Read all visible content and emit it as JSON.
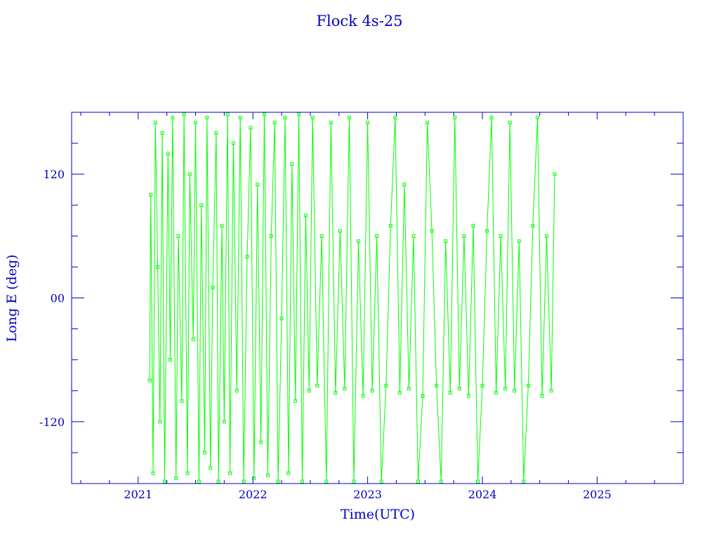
{
  "chart_data": {
    "type": "line",
    "title": "Flock 4s-25",
    "xlabel": "Time(UTC)",
    "ylabel": "Long E (deg)",
    "xlim": [
      2020.42,
      2025.75
    ],
    "ylim": [
      -180,
      180
    ],
    "xticks": [
      2021,
      2022,
      2023,
      2024,
      2025
    ],
    "xtick_labels": [
      "2021",
      "2022",
      "2023",
      "2024",
      "2025"
    ],
    "yticks": [
      120,
      0,
      -120
    ],
    "ytick_labels": [
      "120",
      "00",
      "-120"
    ],
    "grid": false,
    "colors": {
      "series": "#00ff00",
      "axes": "#0000c0",
      "text": "#0000c0"
    },
    "series": [
      {
        "x": [
          2021.1,
          2021.11,
          2021.13,
          2021.15,
          2021.17,
          2021.19,
          2021.21,
          2021.23,
          2021.26,
          2021.28,
          2021.3,
          2021.33,
          2021.35,
          2021.38,
          2021.4,
          2021.43,
          2021.45,
          2021.48,
          2021.5,
          2021.53,
          2021.55,
          2021.58,
          2021.6,
          2021.63,
          2021.65,
          2021.68,
          2021.7,
          2021.73,
          2021.75,
          2021.78,
          2021.8,
          2021.83,
          2021.86,
          2021.89,
          2021.92,
          2021.95,
          2021.98,
          2022.01,
          2022.04,
          2022.07,
          2022.1,
          2022.13,
          2022.16,
          2022.19,
          2022.22,
          2022.25,
          2022.28,
          2022.31,
          2022.34,
          2022.37,
          2022.4,
          2022.43,
          2022.46,
          2022.49,
          2022.52,
          2022.56,
          2022.6,
          2022.64,
          2022.68,
          2022.72,
          2022.76,
          2022.8,
          2022.84,
          2022.88,
          2022.92,
          2022.96,
          2023.0,
          2023.04,
          2023.08,
          2023.12,
          2023.16,
          2023.2,
          2023.24,
          2023.28,
          2023.32,
          2023.36,
          2023.4,
          2023.44,
          2023.48,
          2023.52,
          2023.56,
          2023.6,
          2023.64,
          2023.68,
          2023.72,
          2023.76,
          2023.8,
          2023.84,
          2023.88,
          2023.92,
          2023.96,
          2024.0,
          2024.04,
          2024.08,
          2024.12,
          2024.16,
          2024.2,
          2024.24,
          2024.28,
          2024.32,
          2024.36,
          2024.4,
          2024.44,
          2024.48,
          2024.52,
          2024.56,
          2024.6,
          2024.63
        ],
        "y": [
          -80,
          100,
          -170,
          170,
          30,
          -120,
          160,
          -178,
          140,
          -60,
          175,
          -175,
          60,
          -100,
          178,
          -170,
          120,
          -40,
          170,
          -178,
          90,
          -150,
          175,
          -165,
          10,
          160,
          -178,
          70,
          -120,
          178,
          -170,
          150,
          -90,
          175,
          -178,
          40,
          165,
          -175,
          110,
          -140,
          178,
          -172,
          60,
          170,
          -178,
          -20,
          175,
          -170,
          130,
          -100,
          178,
          -178,
          80,
          -90,
          175,
          -85,
          60,
          -178,
          170,
          -92,
          65,
          -88,
          175,
          -178,
          55,
          -95,
          170,
          -90,
          60,
          -178,
          -85,
          70,
          175,
          -92,
          110,
          -88,
          60,
          -178,
          -95,
          170,
          65,
          -85,
          -178,
          55,
          -92,
          175,
          -88,
          60,
          -95,
          70,
          -178,
          -85,
          65,
          175,
          -92,
          60,
          -88,
          170,
          -90,
          55,
          -178,
          -85,
          70,
          175,
          -95,
          60,
          -90,
          120
        ]
      }
    ]
  }
}
